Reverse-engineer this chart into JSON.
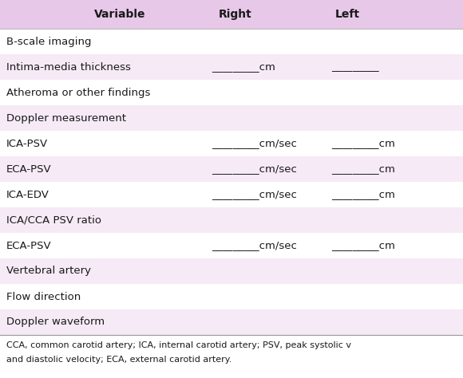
{
  "header": [
    "Variable",
    "Right",
    "Left"
  ],
  "rows": [
    {
      "label": "B-scale imaging",
      "right": "",
      "left": "",
      "indent": false,
      "shaded": false
    },
    {
      "label": "Intima-media thickness",
      "right": "_________cm",
      "left": "_________",
      "indent": false,
      "shaded": true
    },
    {
      "label": "Atheroma or other findings",
      "right": "",
      "left": "",
      "indent": false,
      "shaded": false
    },
    {
      "label": "Doppler measurement",
      "right": "",
      "left": "",
      "indent": false,
      "shaded": true
    },
    {
      "label": "ICA-PSV",
      "right": "_________cm/sec",
      "left": "_________cm",
      "indent": false,
      "shaded": false
    },
    {
      "label": "ECA-PSV",
      "right": "_________cm/sec",
      "left": "_________cm",
      "indent": false,
      "shaded": true
    },
    {
      "label": "ICA-EDV",
      "right": "_________cm/sec",
      "left": "_________cm",
      "indent": false,
      "shaded": false
    },
    {
      "label": "ICA/CCA PSV ratio",
      "right": "",
      "left": "",
      "indent": false,
      "shaded": true
    },
    {
      "label": "ECA-PSV",
      "right": "_________cm/sec",
      "left": "_________cm",
      "indent": false,
      "shaded": false
    },
    {
      "label": "Vertebral artery",
      "right": "",
      "left": "",
      "indent": false,
      "shaded": true
    },
    {
      "label": "Flow direction",
      "right": "",
      "left": "",
      "indent": false,
      "shaded": false
    },
    {
      "label": "Doppler waveform",
      "right": "",
      "left": "",
      "indent": false,
      "shaded": true
    }
  ],
  "footnote1": "CCA, common carotid artery; ICA, internal carotid artery; PSV, peak systolic v",
  "footnote2": "and diastolic velocity; ECA, external carotid artery.",
  "header_bg": "#e8c8e8",
  "row_bg_shaded": "#f5eaf5",
  "row_bg_normal": "#ffffff",
  "text_color": "#1a1a1a",
  "header_fontsize": 10,
  "row_fontsize": 9.5,
  "footnote_fontsize": 8,
  "fig_width": 5.8,
  "fig_height": 4.74,
  "dpi": 100
}
